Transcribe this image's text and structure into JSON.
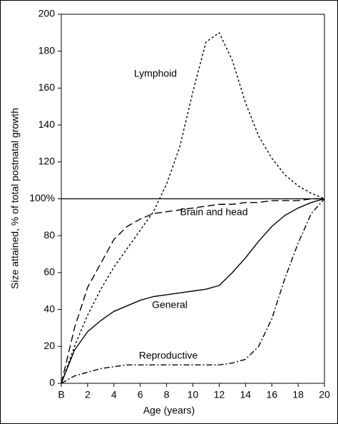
{
  "chart_data": {
    "type": "line",
    "x_label": "Age (years)",
    "y_label": "Size attained, % of total postnatal growth",
    "x": [
      0,
      1,
      2,
      3,
      4,
      5,
      6,
      7,
      8,
      9,
      10,
      11,
      12,
      13,
      14,
      15,
      16,
      17,
      18,
      19,
      20
    ],
    "series": [
      {
        "name": "Lymphoid",
        "color": "#000000",
        "dash": "3,3",
        "values": [
          0,
          20,
          37,
          51,
          63,
          73,
          83,
          93,
          108,
          128,
          158,
          185,
          190,
          175,
          152,
          134,
          122,
          113,
          107,
          103,
          100
        ]
      },
      {
        "name": "Brain and head",
        "color": "#000000",
        "dash": "10,5",
        "values": [
          0,
          30,
          52,
          65,
          78,
          85,
          89,
          92,
          93,
          94,
          95,
          96,
          97,
          97,
          98,
          98,
          99,
          99,
          99,
          100,
          100
        ]
      },
      {
        "name": "General",
        "color": "#000000",
        "dash": "none",
        "values": [
          0,
          18,
          28,
          34,
          39,
          42,
          45,
          47,
          48,
          49,
          50,
          51,
          53,
          60,
          68,
          77,
          85,
          91,
          95,
          98,
          100
        ]
      },
      {
        "name": "Reproductive",
        "color": "#000000",
        "dash": "8,3,2,3",
        "values": [
          0,
          4,
          6,
          8,
          9,
          10,
          10,
          10,
          10,
          10,
          10,
          10,
          10,
          11,
          13,
          20,
          35,
          57,
          76,
          92,
          100
        ]
      }
    ],
    "xlim": [
      0,
      20
    ],
    "xticks": [
      {
        "value": 0,
        "label": "B"
      },
      2,
      4,
      6,
      8,
      10,
      12,
      14,
      16,
      18,
      20
    ],
    "ylim": [
      0,
      200
    ],
    "yticks": [
      0,
      20,
      40,
      60,
      80,
      {
        "value": 100,
        "label": "100%"
      },
      120,
      140,
      160,
      180,
      200
    ],
    "reference_line": 100,
    "grid": false
  }
}
